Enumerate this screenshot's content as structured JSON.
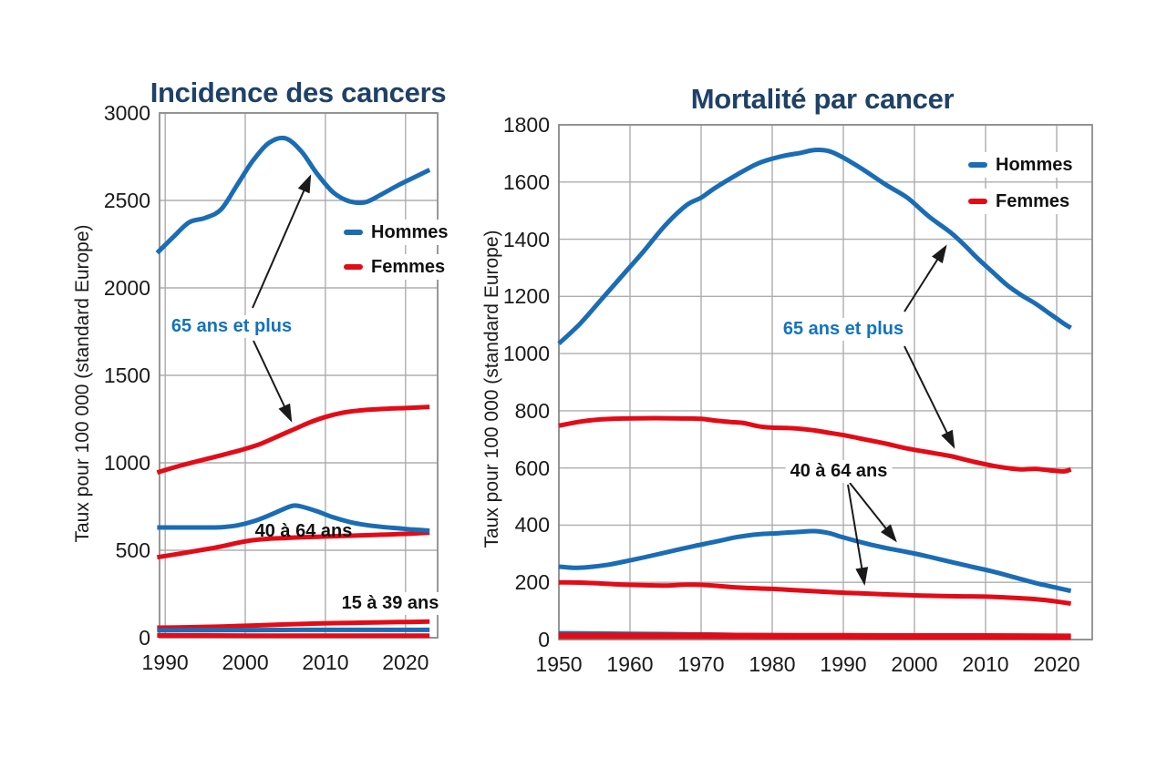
{
  "colors": {
    "hommes_line": "#1a6cb5",
    "femmes_line": "#e30b17",
    "title": "#1f4168",
    "annotation_blue": "#1273bd",
    "grid": "#adadad",
    "frame": "#8c8c8c",
    "text": "#1a1a1a"
  },
  "left_chart": {
    "title": "Incidence des cancers",
    "ylabel": "Taux pour 100 000 (standard Europe)",
    "legend": {
      "hommes": "Hommes",
      "femmes": "Femmes"
    },
    "annotations": {
      "age_65": "65 ans et plus",
      "age_40_64": "40 à 64 ans",
      "age_15_39": "15 à 39 ans"
    },
    "chart_data": {
      "type": "line",
      "title": "Incidence des cancers",
      "xlabel": "",
      "ylabel": "Taux pour 100 000 (standard Europe)",
      "ylim": [
        0,
        3000
      ],
      "y_ticks": [
        3000,
        2500,
        2000,
        1500,
        1000,
        500,
        0
      ],
      "x_ticks": [
        1990,
        2000,
        2010,
        2020
      ],
      "x_range": [
        1989,
        2023
      ],
      "grid": true,
      "legend": [
        "Hommes",
        "Femmes"
      ],
      "legend_position": "haut droite de la zone de tracé",
      "series": [
        {
          "name": "Hommes – 65 ans et plus",
          "sex": "hommes",
          "width": 5,
          "points": [
            [
              1989,
              2200
            ],
            [
              1991,
              2290
            ],
            [
              1993,
              2375
            ],
            [
              1995,
              2400
            ],
            [
              1997,
              2450
            ],
            [
              1999,
              2590
            ],
            [
              2001,
              2730
            ],
            [
              2003,
              2830
            ],
            [
              2005,
              2855
            ],
            [
              2007,
              2780
            ],
            [
              2009,
              2650
            ],
            [
              2011,
              2545
            ],
            [
              2013,
              2495
            ],
            [
              2015,
              2490
            ],
            [
              2017,
              2535
            ],
            [
              2019,
              2585
            ],
            [
              2021,
              2630
            ],
            [
              2023,
              2675
            ]
          ]
        },
        {
          "name": "Femmes – 65 ans et plus",
          "sex": "femmes",
          "width": 5,
          "points": [
            [
              1989,
              945
            ],
            [
              1992,
              985
            ],
            [
              1995,
              1020
            ],
            [
              1998,
              1055
            ],
            [
              2000,
              1080
            ],
            [
              2002,
              1110
            ],
            [
              2004,
              1150
            ],
            [
              2006,
              1190
            ],
            [
              2008,
              1230
            ],
            [
              2010,
              1262
            ],
            [
              2012,
              1285
            ],
            [
              2014,
              1298
            ],
            [
              2016,
              1305
            ],
            [
              2018,
              1310
            ],
            [
              2020,
              1313
            ],
            [
              2023,
              1320
            ]
          ]
        },
        {
          "name": "Femmes – 40 à 64 ans",
          "sex": "femmes",
          "width": 5,
          "points": [
            [
              1989,
              460
            ],
            [
              1992,
              482
            ],
            [
              1995,
              505
            ],
            [
              1997,
              522
            ],
            [
              1999,
              542
            ],
            [
              2001,
              558
            ],
            [
              2003,
              566
            ],
            [
              2005,
              570
            ],
            [
              2007,
              574
            ],
            [
              2009,
              577
            ],
            [
              2011,
              580
            ],
            [
              2013,
              583
            ],
            [
              2015,
              586
            ],
            [
              2017,
              589
            ],
            [
              2019,
              592
            ],
            [
              2021,
              596
            ],
            [
              2023,
              600
            ]
          ]
        },
        {
          "name": "Hommes – 40 à 64 ans",
          "sex": "hommes",
          "width": 5,
          "points": [
            [
              1989,
              630
            ],
            [
              1992,
              630
            ],
            [
              1995,
              630
            ],
            [
              1997,
              632
            ],
            [
              1999,
              642
            ],
            [
              2001,
              665
            ],
            [
              2003,
              700
            ],
            [
              2005,
              740
            ],
            [
              2006,
              755
            ],
            [
              2007,
              750
            ],
            [
              2009,
              722
            ],
            [
              2011,
              688
            ],
            [
              2013,
              662
            ],
            [
              2015,
              645
            ],
            [
              2017,
              634
            ],
            [
              2019,
              626
            ],
            [
              2021,
              618
            ],
            [
              2023,
              612
            ]
          ]
        },
        {
          "name": "Femmes – 15 à 39 ans",
          "sex": "femmes",
          "width": 5,
          "points": [
            [
              1989,
              57
            ],
            [
              1993,
              60
            ],
            [
              1997,
              64
            ],
            [
              2001,
              70
            ],
            [
              2005,
              76
            ],
            [
              2009,
              81
            ],
            [
              2013,
              85
            ],
            [
              2017,
              88
            ],
            [
              2020,
              90
            ],
            [
              2023,
              92
            ]
          ]
        },
        {
          "name": "Hommes – 15 à 39 ans",
          "sex": "hommes",
          "width": 5,
          "points": [
            [
              1989,
              42
            ],
            [
              1995,
              43
            ],
            [
              2001,
              44
            ],
            [
              2007,
              45
            ],
            [
              2013,
              45
            ],
            [
              2023,
              45
            ]
          ]
        },
        {
          "name": "Ligne rouge proche de zéro (non étiquetée)",
          "sex": "femmes",
          "width": 5,
          "points": [
            [
              1989,
              13
            ],
            [
              1995,
              13
            ],
            [
              2001,
              12
            ],
            [
              2007,
              12
            ],
            [
              2013,
              12
            ],
            [
              2023,
              12
            ]
          ]
        }
      ]
    }
  },
  "right_chart": {
    "title": "Mortalité par cancer",
    "ylabel": "Taux pour 100 000 (standard Europe)",
    "legend": {
      "hommes": "Hommes",
      "femmes": "Femmes"
    },
    "annotations": {
      "age_65": "65 ans et plus",
      "age_40_64": "40 à 64 ans"
    },
    "chart_data": {
      "type": "line",
      "title": "Mortalité par cancer",
      "xlabel": "",
      "ylabel": "Taux pour 100 000 (standard Europe)",
      "ylim": [
        0,
        1800
      ],
      "y_ticks": [
        1800,
        1600,
        1400,
        1200,
        1000,
        800,
        600,
        400,
        200,
        0
      ],
      "x_ticks": [
        1950,
        1960,
        1970,
        1980,
        1990,
        2000,
        2010,
        2020
      ],
      "x_range": [
        1950,
        2022
      ],
      "grid": true,
      "legend": [
        "Hommes",
        "Femmes"
      ],
      "legend_position": "haut droite de la zone de tracé",
      "series": [
        {
          "name": "Hommes – 65 ans et plus",
          "sex": "hommes",
          "width": 5,
          "points": [
            [
              1950,
              1035
            ],
            [
              1953,
              1105
            ],
            [
              1956,
              1190
            ],
            [
              1959,
              1275
            ],
            [
              1962,
              1360
            ],
            [
              1965,
              1450
            ],
            [
              1968,
              1520
            ],
            [
              1970,
              1545
            ],
            [
              1972,
              1580
            ],
            [
              1975,
              1625
            ],
            [
              1978,
              1665
            ],
            [
              1981,
              1688
            ],
            [
              1984,
              1702
            ],
            [
              1986,
              1712
            ],
            [
              1988,
              1708
            ],
            [
              1990,
              1685
            ],
            [
              1993,
              1640
            ],
            [
              1996,
              1590
            ],
            [
              1999,
              1545
            ],
            [
              2002,
              1480
            ],
            [
              2005,
              1425
            ],
            [
              2007,
              1380
            ],
            [
              2009,
              1330
            ],
            [
              2011,
              1285
            ],
            [
              2013,
              1240
            ],
            [
              2015,
              1205
            ],
            [
              2017,
              1175
            ],
            [
              2019,
              1140
            ],
            [
              2021,
              1105
            ],
            [
              2022,
              1090
            ]
          ]
        },
        {
          "name": "Femmes – 65 ans et plus",
          "sex": "femmes",
          "width": 5,
          "points": [
            [
              1950,
              748
            ],
            [
              1953,
              762
            ],
            [
              1956,
              770
            ],
            [
              1959,
              773
            ],
            [
              1962,
              774
            ],
            [
              1965,
              774
            ],
            [
              1968,
              773
            ],
            [
              1970,
              772
            ],
            [
              1972,
              766
            ],
            [
              1974,
              761
            ],
            [
              1976,
              757
            ],
            [
              1978,
              746
            ],
            [
              1980,
              741
            ],
            [
              1982,
              740
            ],
            [
              1984,
              737
            ],
            [
              1986,
              731
            ],
            [
              1988,
              723
            ],
            [
              1990,
              715
            ],
            [
              1993,
              700
            ],
            [
              1996,
              685
            ],
            [
              1999,
              668
            ],
            [
              2002,
              655
            ],
            [
              2005,
              642
            ],
            [
              2007,
              630
            ],
            [
              2009,
              618
            ],
            [
              2011,
              608
            ],
            [
              2013,
              600
            ],
            [
              2015,
              595
            ],
            [
              2017,
              597
            ],
            [
              2019,
              592
            ],
            [
              2021,
              588
            ],
            [
              2022,
              595
            ]
          ]
        },
        {
          "name": "Femmes – 40 à 64 ans",
          "sex": "femmes",
          "width": 5,
          "points": [
            [
              1950,
              200
            ],
            [
              1953,
              199
            ],
            [
              1956,
              196
            ],
            [
              1959,
              192
            ],
            [
              1962,
              190
            ],
            [
              1965,
              189
            ],
            [
              1968,
              192
            ],
            [
              1971,
              190
            ],
            [
              1974,
              184
            ],
            [
              1977,
              180
            ],
            [
              1980,
              177
            ],
            [
              1983,
              173
            ],
            [
              1986,
              169
            ],
            [
              1989,
              165
            ],
            [
              1992,
              162
            ],
            [
              1995,
              159
            ],
            [
              1998,
              156
            ],
            [
              2001,
              154
            ],
            [
              2004,
              152
            ],
            [
              2007,
              151
            ],
            [
              2010,
              150
            ],
            [
              2013,
              147
            ],
            [
              2016,
              143
            ],
            [
              2018,
              139
            ],
            [
              2020,
              133
            ],
            [
              2022,
              126
            ]
          ]
        },
        {
          "name": "Hommes – 40 à 64 ans",
          "sex": "hommes",
          "width": 5,
          "points": [
            [
              1950,
              255
            ],
            [
              1952,
              251
            ],
            [
              1954,
              253
            ],
            [
              1957,
              262
            ],
            [
              1960,
              277
            ],
            [
              1963,
              293
            ],
            [
              1966,
              310
            ],
            [
              1969,
              327
            ],
            [
              1972,
              342
            ],
            [
              1975,
              358
            ],
            [
              1978,
              368
            ],
            [
              1981,
              372
            ],
            [
              1984,
              377
            ],
            [
              1986,
              379
            ],
            [
              1988,
              372
            ],
            [
              1990,
              357
            ],
            [
              1993,
              337
            ],
            [
              1996,
              320
            ],
            [
              1999,
              306
            ],
            [
              2002,
              290
            ],
            [
              2005,
              272
            ],
            [
              2008,
              255
            ],
            [
              2011,
              238
            ],
            [
              2014,
              218
            ],
            [
              2017,
              198
            ],
            [
              2020,
              181
            ],
            [
              2022,
              170
            ]
          ]
        },
        {
          "name": "Ligne bleue proche de zéro (non étiquetée)",
          "sex": "hommes",
          "width": 5,
          "points": [
            [
              1950,
              22
            ],
            [
              1955,
              21
            ],
            [
              1960,
              20
            ],
            [
              1965,
              19
            ],
            [
              1970,
              18
            ],
            [
              1975,
              16
            ],
            [
              1980,
              15
            ],
            [
              1985,
              14
            ],
            [
              1990,
              13
            ],
            [
              1995,
              12
            ],
            [
              2000,
              11
            ],
            [
              2005,
              10
            ],
            [
              2010,
              9
            ],
            [
              2015,
              9
            ],
            [
              2022,
              8
            ]
          ]
        },
        {
          "name": "Ligne rouge proche de zéro (non étiquetée)",
          "sex": "femmes",
          "width": 7,
          "points": [
            [
              1950,
              13
            ],
            [
              1960,
              13
            ],
            [
              1970,
              13
            ],
            [
              1980,
              12
            ],
            [
              1990,
              12
            ],
            [
              2000,
              11
            ],
            [
              2010,
              11
            ],
            [
              2022,
              10
            ]
          ]
        }
      ]
    }
  }
}
